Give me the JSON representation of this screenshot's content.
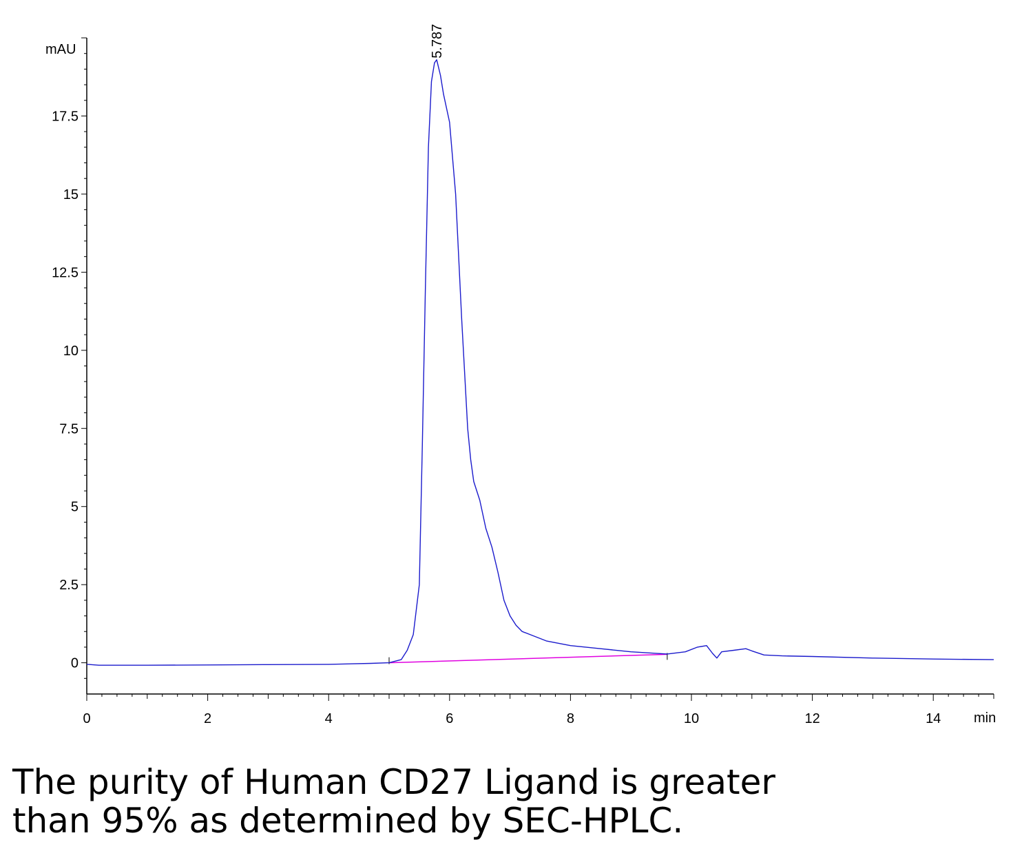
{
  "chart_data": {
    "type": "line",
    "title": "",
    "xlabel": "min",
    "ylabel": "mAU",
    "xlim": [
      0,
      15
    ],
    "ylim": [
      -1,
      20
    ],
    "x_ticks": [
      0,
      2,
      4,
      6,
      8,
      10,
      12,
      14
    ],
    "x_tick_labels": [
      "0",
      "2",
      "4",
      "6",
      "8",
      "10",
      "12",
      "14"
    ],
    "y_ticks": [
      0,
      2.5,
      5,
      7.5,
      10,
      12.5,
      15,
      17.5
    ],
    "y_tick_labels": [
      "0",
      "2.5",
      "5",
      "7.5",
      "10",
      "12.5",
      "15",
      "17.5"
    ],
    "grid": false,
    "series": [
      {
        "color": "#1a1acc",
        "x": [
          0,
          0.2,
          1,
          2,
          3,
          4,
          4.7,
          5.0,
          5.2,
          5.3,
          5.4,
          5.5,
          5.55,
          5.6,
          5.65,
          5.7,
          5.75,
          5.787,
          5.85,
          5.9,
          6.0,
          6.1,
          6.2,
          6.3,
          6.35,
          6.4,
          6.5,
          6.6,
          6.7,
          6.8,
          6.9,
          7.0,
          7.1,
          7.2,
          7.4,
          7.6,
          8.0,
          8.5,
          9.0,
          9.6,
          9.9,
          10.1,
          10.25,
          10.35,
          10.42,
          10.5,
          10.7,
          10.9,
          11.0,
          11.2,
          11.5,
          12,
          13,
          14,
          15
        ],
        "y": [
          -0.05,
          -0.08,
          -0.08,
          -0.07,
          -0.06,
          -0.05,
          -0.02,
          0.0,
          0.1,
          0.4,
          0.9,
          2.5,
          7.0,
          12.0,
          16.5,
          18.6,
          19.2,
          19.3,
          18.8,
          18.2,
          17.3,
          15.0,
          11.0,
          7.5,
          6.5,
          5.8,
          5.2,
          4.3,
          3.7,
          2.9,
          2.0,
          1.5,
          1.2,
          1.0,
          0.85,
          0.7,
          0.55,
          0.45,
          0.35,
          0.28,
          0.35,
          0.5,
          0.55,
          0.3,
          0.15,
          0.35,
          0.4,
          0.45,
          0.38,
          0.25,
          0.22,
          0.2,
          0.15,
          0.12,
          0.1
        ]
      }
    ],
    "baseline": {
      "color": "#e000e0",
      "x": [
        5.0,
        9.6
      ],
      "y": [
        0.0,
        0.27
      ]
    },
    "peak_annotation": {
      "label": "5.787",
      "x": 5.787,
      "y": 19.3
    }
  },
  "caption": {
    "line1": "The purity of Human CD27 Ligand is greater",
    "line2": "than 95% as determined by SEC-HPLC."
  }
}
